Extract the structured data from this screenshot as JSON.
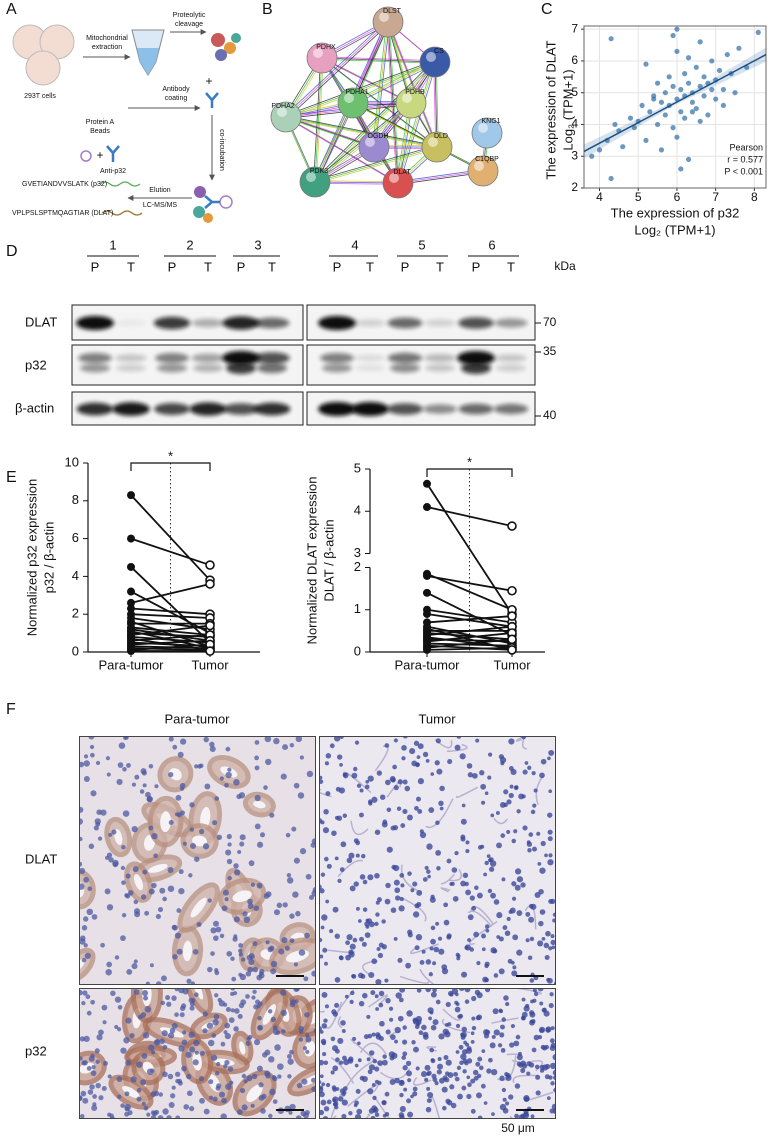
{
  "panel_labels": [
    "A",
    "B",
    "C",
    "D",
    "E",
    "F"
  ],
  "workflow": {
    "cells": "293T cells",
    "extraction": [
      "Mitochondrial",
      "extraction"
    ],
    "cleavage": [
      "Proteolytic",
      "cleavage"
    ],
    "beads": [
      "Protein A",
      "Beads"
    ],
    "antibody": "Anti-p32",
    "coating": [
      "Antibody",
      "coating"
    ],
    "incubation": "co-incubation",
    "elution": [
      "Elution",
      "LC-MS/MS"
    ],
    "peptides": [
      "GVETIANDVVSLATK (p32)",
      "VPLPSLSPTMQAGTIAR (DLAT)"
    ]
  },
  "network": {
    "nodes": [
      "PDHX",
      "DLST",
      "CS",
      "PDHA2",
      "PDHA1",
      "PDHB",
      "OGDH",
      "DLD",
      "KNG1",
      "C1QBP",
      "PDK3",
      "DLAT"
    ]
  },
  "chart_data": [
    {
      "type": "scatter",
      "y_label": [
        "The expression of DLAT",
        "Log₂ (TPM+1)"
      ],
      "x_label": [
        "The expression of p32",
        "Log₂ (TPM+1)"
      ],
      "annotation": [
        "Pearson",
        "r = 0.577",
        "P < 0.001"
      ],
      "x": [
        4.0,
        4.2,
        4.3,
        4.5,
        4.6,
        4.8,
        4.9,
        5.0,
        5.1,
        5.2,
        5.3,
        5.4,
        5.5,
        5.5,
        5.6,
        5.7,
        5.7,
        5.8,
        5.8,
        5.9,
        5.9,
        6.0,
        6.0,
        6.0,
        6.1,
        6.1,
        6.2,
        6.2,
        6.2,
        6.3,
        6.3,
        6.4,
        6.4,
        6.5,
        6.5,
        6.6,
        6.6,
        6.7,
        6.7,
        6.8,
        6.8,
        6.9,
        7.0,
        7.0,
        7.1,
        7.2,
        7.3,
        7.4,
        7.5,
        7.6,
        7.8,
        8.1,
        3.8,
        4.4,
        5.2,
        5.6,
        6.0,
        6.3,
        6.6,
        6.9,
        7.2,
        5.9,
        6.1,
        6.4,
        4.3,
        5.4
      ],
      "y": [
        3.2,
        3.5,
        6.7,
        3.8,
        3.3,
        4.2,
        3.9,
        4.1,
        4.6,
        3.5,
        4.4,
        4.8,
        4.0,
        5.3,
        4.7,
        5.0,
        4.3,
        5.5,
        4.6,
        3.9,
        5.2,
        4.8,
        6.3,
        3.6,
        5.1,
        4.4,
        5.6,
        4.9,
        4.2,
        5.3,
        6.1,
        4.7,
        5.0,
        5.8,
        4.5,
        5.2,
        6.6,
        4.9,
        5.5,
        5.3,
        4.3,
        6.0,
        5.4,
        4.8,
        5.7,
        5.1,
        6.2,
        5.6,
        5.0,
        6.4,
        5.8,
        6.9,
        3.0,
        4.0,
        5.9,
        3.2,
        7.0,
        2.9,
        4.1,
        5.1,
        4.6,
        6.8,
        2.6,
        4.4,
        2.3,
        4.9
      ],
      "fit": {
        "x": [
          3.6,
          8.3
        ],
        "y": [
          3.15,
          6.2
        ]
      },
      "xlim": [
        3.6,
        8.3
      ],
      "ylim": [
        2,
        7.1
      ],
      "xticks": [
        4,
        5,
        6,
        7,
        8
      ],
      "yticks": [
        2,
        3,
        4,
        5,
        6,
        7
      ],
      "color": "#2f6ea5",
      "grid": true
    },
    {
      "type": "paired",
      "y_label": [
        "Normalized p32 expression",
        "p32 / β-actin"
      ],
      "categories": [
        "Para-tumor",
        "Tumor"
      ],
      "significance": "*",
      "pairs": [
        [
          8.3,
          3.8
        ],
        [
          6,
          4.6
        ],
        [
          4.5,
          0.5
        ],
        [
          3.2,
          1.0
        ],
        [
          2.6,
          3.6
        ],
        [
          2.3,
          2.0
        ],
        [
          2.0,
          1.8
        ],
        [
          1.8,
          1.2
        ],
        [
          1.6,
          0.3
        ],
        [
          1.5,
          1.5
        ],
        [
          1.3,
          0.9
        ],
        [
          1.2,
          0.6
        ],
        [
          1.1,
          0.2
        ],
        [
          1.0,
          0.8
        ],
        [
          0.9,
          1.4
        ],
        [
          0.8,
          0.5
        ],
        [
          0.7,
          0.1
        ],
        [
          0.6,
          0.9
        ],
        [
          0.5,
          0.3
        ],
        [
          0.4,
          0.6
        ],
        [
          0.3,
          0.2
        ],
        [
          0.2,
          0.1
        ],
        [
          0.1,
          0.4
        ],
        [
          0.05,
          0.05
        ]
      ],
      "ylim": [
        0,
        10
      ],
      "yticks": [
        0,
        2,
        4,
        6,
        8,
        10
      ]
    },
    {
      "type": "paired",
      "y_label": [
        "Normalized DLAT expression",
        "DLAT / β-actin"
      ],
      "categories": [
        "Para-tumor",
        "Tumor"
      ],
      "significance": "*",
      "pairs": [
        [
          4.65,
          0.9
        ],
        [
          4.1,
          3.65
        ],
        [
          1.85,
          1.0
        ],
        [
          1.8,
          1.45
        ],
        [
          1.4,
          0.4
        ],
        [
          1.0,
          0.7
        ],
        [
          0.9,
          0.6
        ],
        [
          0.7,
          0.85
        ],
        [
          0.6,
          0.2
        ],
        [
          0.5,
          0.5
        ],
        [
          0.45,
          0.3
        ],
        [
          0.4,
          0.6
        ],
        [
          0.35,
          0.1
        ],
        [
          0.3,
          0.25
        ],
        [
          0.25,
          0.45
        ],
        [
          0.2,
          0.15
        ],
        [
          0.15,
          0.05
        ],
        [
          0.1,
          0.3
        ],
        [
          0.05,
          0.1
        ],
        [
          0.55,
          0.05
        ]
      ],
      "ylim": [
        0,
        5
      ],
      "ybreak": [
        2,
        3
      ],
      "yticks": [
        0,
        1,
        2,
        3,
        4,
        5
      ]
    }
  ],
  "western_blot": {
    "lanes": [
      "1",
      "2",
      "3",
      "4",
      "5",
      "6"
    ],
    "lane_types": [
      "P",
      "T",
      "P",
      "T",
      "P",
      "T",
      "P",
      "T",
      "P",
      "T",
      "P",
      "T"
    ],
    "unit": "kDa",
    "rows": [
      "DLAT",
      "p32",
      "β-actin"
    ],
    "markers": [
      70,
      35,
      40
    ]
  },
  "ihc": {
    "columns": [
      "Para-tumor",
      "Tumor"
    ],
    "rows": [
      "DLAT",
      "p32"
    ],
    "scale_bar": "50 μm"
  }
}
